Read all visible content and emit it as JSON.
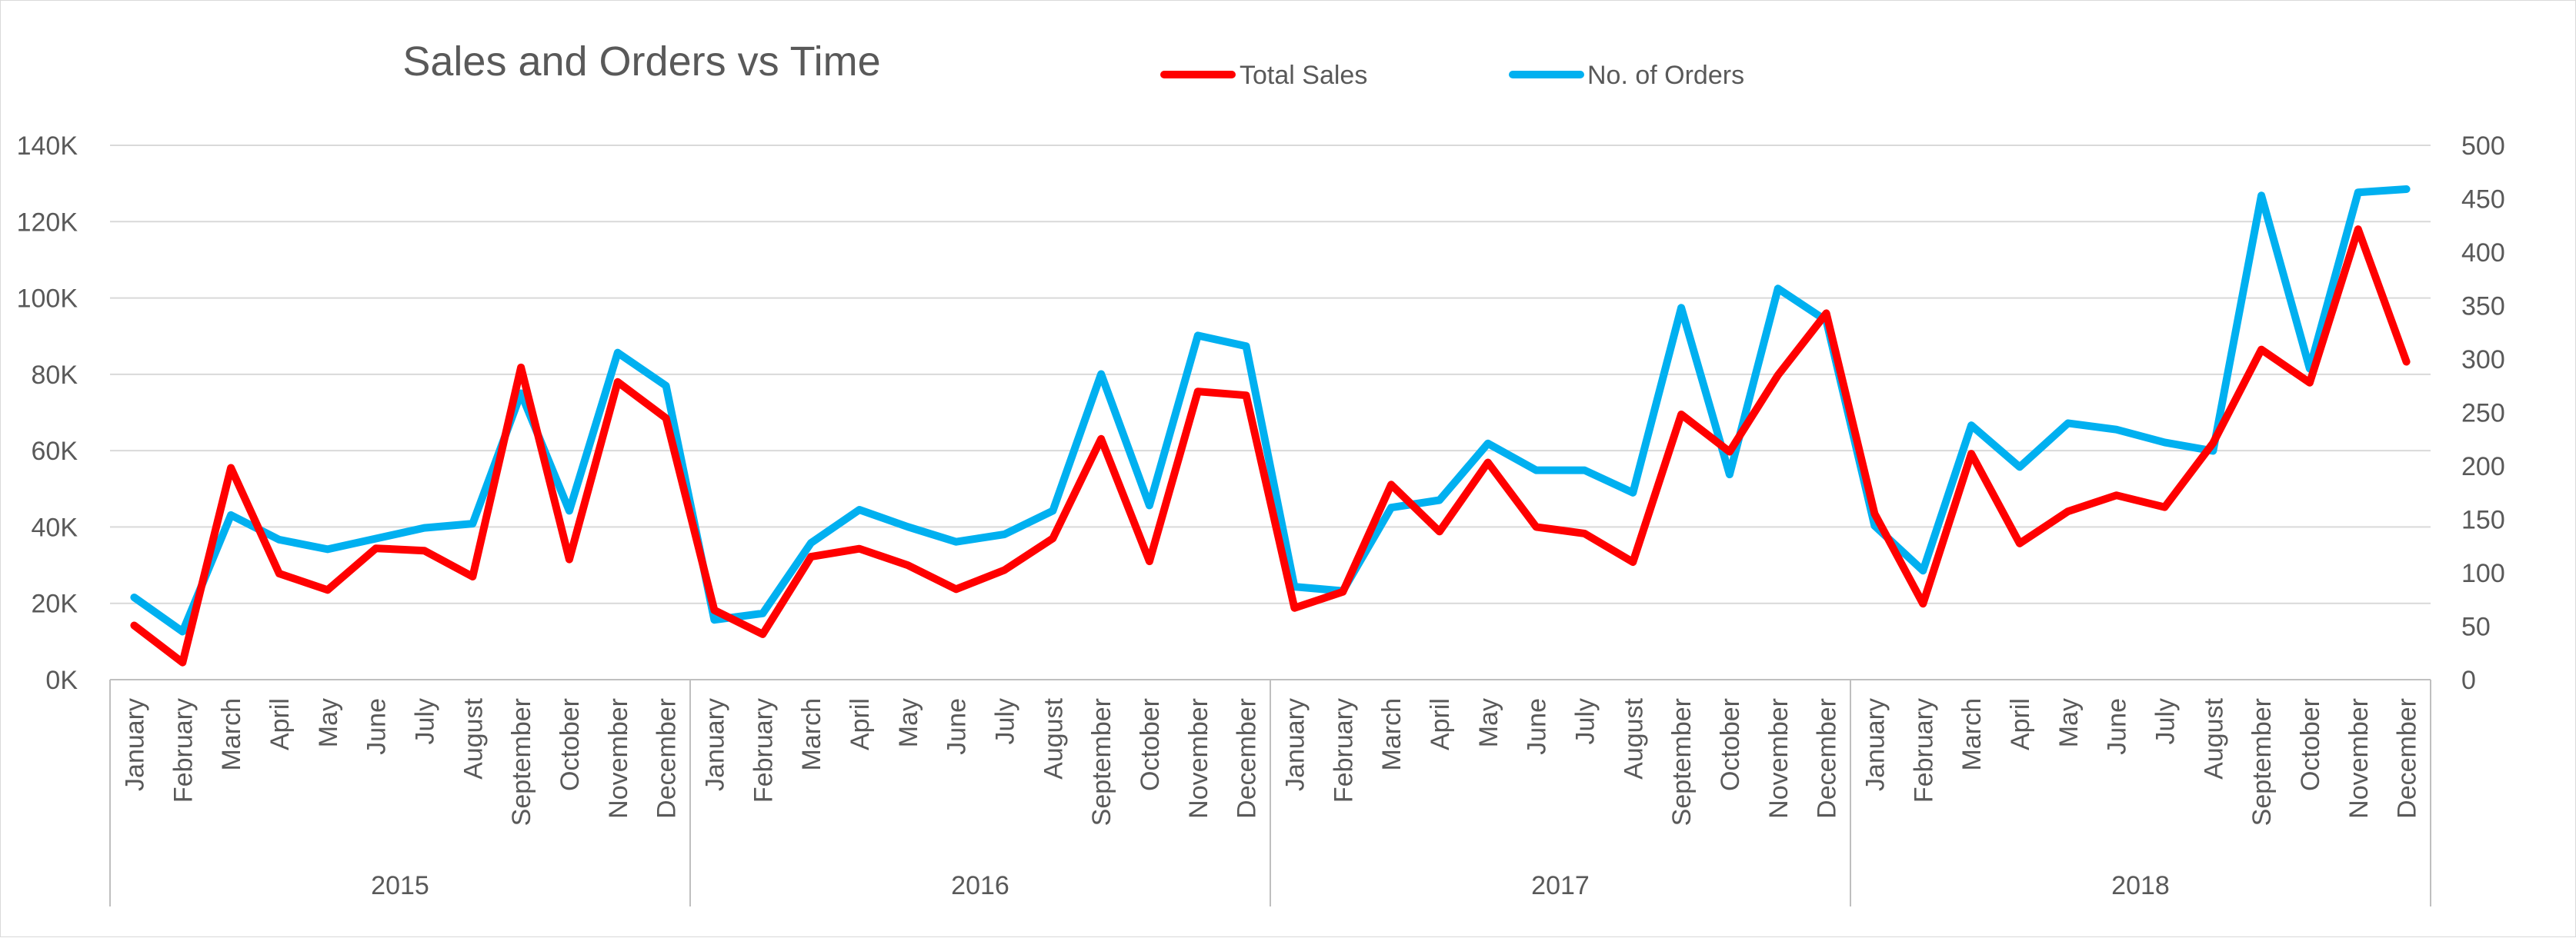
{
  "chart_data": {
    "type": "line",
    "title": "Sales and Orders vs Time",
    "years": [
      "2015",
      "2016",
      "2017",
      "2018"
    ],
    "months": [
      "January",
      "February",
      "March",
      "April",
      "May",
      "June",
      "July",
      "August",
      "September",
      "October",
      "November",
      "December"
    ],
    "x": [
      "January 2015",
      "February 2015",
      "March 2015",
      "April 2015",
      "May 2015",
      "June 2015",
      "July 2015",
      "August 2015",
      "September 2015",
      "October 2015",
      "November 2015",
      "December 2015",
      "January 2016",
      "February 2016",
      "March 2016",
      "April 2016",
      "May 2016",
      "June 2016",
      "July 2016",
      "August 2016",
      "September 2016",
      "October 2016",
      "November 2016",
      "December 2016",
      "January 2017",
      "February 2017",
      "March 2017",
      "April 2017",
      "May 2017",
      "June 2017",
      "July 2017",
      "August 2017",
      "September 2017",
      "October 2017",
      "November 2017",
      "December 2017",
      "January 2018",
      "February 2018",
      "March 2018",
      "April 2018",
      "May 2018",
      "June 2018",
      "July 2018",
      "August 2018",
      "September 2018",
      "October 2018",
      "November 2018",
      "December 2018"
    ],
    "series": [
      {
        "name": "Total Sales",
        "axis": "left",
        "color": "#ff0000",
        "values": [
          14200,
          4500,
          55500,
          27800,
          23500,
          34400,
          33800,
          27000,
          81800,
          31500,
          78000,
          68500,
          18200,
          11900,
          32200,
          34300,
          30000,
          23700,
          28700,
          37000,
          63100,
          31000,
          75500,
          74500,
          18800,
          23000,
          51100,
          38800,
          56900,
          40000,
          38300,
          30800,
          69500,
          59700,
          79800,
          96000,
          43500,
          19900,
          59200,
          35700,
          44100,
          48300,
          45200,
          62000,
          86500,
          77800,
          118000,
          83300
        ]
      },
      {
        "name": "No. of Orders",
        "axis": "right",
        "color": "#00b0f0",
        "values": [
          77,
          45,
          154,
          131,
          122,
          132,
          142,
          146,
          268,
          158,
          306,
          275,
          56,
          62,
          128,
          159,
          143,
          129,
          136,
          158,
          286,
          163,
          322,
          312,
          87,
          83,
          161,
          168,
          221,
          196,
          196,
          175,
          348,
          192,
          366,
          336,
          144,
          102,
          238,
          199,
          240,
          234,
          222,
          214,
          453,
          291,
          456,
          459
        ]
      }
    ],
    "y_left": {
      "min": 0,
      "max": 140000,
      "ticks": [
        "0K",
        "20K",
        "40K",
        "60K",
        "80K",
        "100K",
        "120K",
        "140K"
      ]
    },
    "y_right": {
      "min": 0,
      "max": 500,
      "ticks": [
        "0",
        "50",
        "100",
        "150",
        "200",
        "250",
        "300",
        "350",
        "400",
        "450",
        "500"
      ]
    },
    "grid": true,
    "legend": "top-center"
  }
}
